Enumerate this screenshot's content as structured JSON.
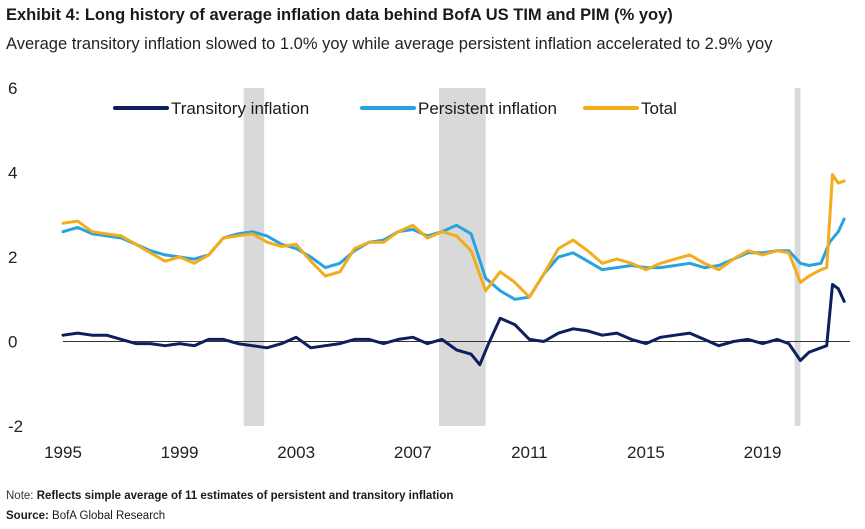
{
  "header": {
    "title": "Exhibit 4: Long history of average inflation data behind BofA US TIM and PIM (% yoy)",
    "subtitle": "Average transitory inflation slowed to 1.0% yoy while average persistent inflation accelerated to 2.9% yoy"
  },
  "footer": {
    "note_label": "Note:",
    "note_text": "Reflects simple average of 11 estimates of persistent and transitory inflation",
    "source_label": "Source:",
    "source_text": "BofA Global Research"
  },
  "colors": {
    "transitory": "#0d1f5c",
    "persistent": "#29a3e0",
    "total": "#f2ac1c",
    "recession": "#d9d9d9",
    "zero_line": "#333333"
  },
  "chart_data": {
    "type": "line",
    "title": "Exhibit 4: Long history of average inflation data behind BofA US TIM and PIM (% yoy)",
    "xlim": [
      1995,
      2022.0
    ],
    "ylim": [
      -2,
      6
    ],
    "xticks": [
      1995,
      1999,
      2003,
      2007,
      2011,
      2015,
      2019
    ],
    "yticks": [
      -2,
      0,
      2,
      4,
      6
    ],
    "legend_position": "top",
    "grid": false,
    "recession_shading": [
      [
        2001.2,
        2001.9
      ],
      [
        2007.9,
        2009.5
      ],
      [
        2020.1,
        2020.3
      ]
    ],
    "series": [
      {
        "name": "Transitory inflation",
        "color": "#0d1f5c",
        "points": [
          [
            1995.0,
            0.15
          ],
          [
            1995.5,
            0.2
          ],
          [
            1996.0,
            0.15
          ],
          [
            1996.5,
            0.15
          ],
          [
            1997.0,
            0.05
          ],
          [
            1997.5,
            -0.05
          ],
          [
            1998.0,
            -0.05
          ],
          [
            1998.5,
            -0.1
          ],
          [
            1999.0,
            -0.05
          ],
          [
            1999.5,
            -0.1
          ],
          [
            2000.0,
            0.05
          ],
          [
            2000.5,
            0.05
          ],
          [
            2001.0,
            -0.05
          ],
          [
            2001.5,
            -0.1
          ],
          [
            2002.0,
            -0.15
          ],
          [
            2002.5,
            -0.05
          ],
          [
            2003.0,
            0.1
          ],
          [
            2003.5,
            -0.15
          ],
          [
            2004.0,
            -0.1
          ],
          [
            2004.5,
            -0.05
          ],
          [
            2005.0,
            0.05
          ],
          [
            2005.5,
            0.05
          ],
          [
            2006.0,
            -0.05
          ],
          [
            2006.5,
            0.05
          ],
          [
            2007.0,
            0.1
          ],
          [
            2007.5,
            -0.05
          ],
          [
            2008.0,
            0.05
          ],
          [
            2008.5,
            -0.2
          ],
          [
            2009.0,
            -0.3
          ],
          [
            2009.3,
            -0.55
          ],
          [
            2009.6,
            -0.05
          ],
          [
            2010.0,
            0.55
          ],
          [
            2010.5,
            0.4
          ],
          [
            2011.0,
            0.05
          ],
          [
            2011.5,
            0.0
          ],
          [
            2012.0,
            0.2
          ],
          [
            2012.5,
            0.3
          ],
          [
            2013.0,
            0.25
          ],
          [
            2013.5,
            0.15
          ],
          [
            2014.0,
            0.2
          ],
          [
            2014.5,
            0.05
          ],
          [
            2015.0,
            -0.05
          ],
          [
            2015.5,
            0.1
          ],
          [
            2016.0,
            0.15
          ],
          [
            2016.5,
            0.2
          ],
          [
            2017.0,
            0.05
          ],
          [
            2017.5,
            -0.1
          ],
          [
            2018.0,
            0.0
          ],
          [
            2018.5,
            0.05
          ],
          [
            2019.0,
            -0.05
          ],
          [
            2019.5,
            0.05
          ],
          [
            2019.9,
            -0.05
          ],
          [
            2020.3,
            -0.45
          ],
          [
            2020.6,
            -0.25
          ],
          [
            2021.0,
            -0.15
          ],
          [
            2021.2,
            -0.1
          ],
          [
            2021.4,
            1.35
          ],
          [
            2021.6,
            1.25
          ],
          [
            2021.8,
            0.95
          ]
        ]
      },
      {
        "name": "Persistent inflation",
        "color": "#29a3e0",
        "points": [
          [
            1995.0,
            2.6
          ],
          [
            1995.5,
            2.7
          ],
          [
            1996.0,
            2.55
          ],
          [
            1996.5,
            2.5
          ],
          [
            1997.0,
            2.45
          ],
          [
            1997.5,
            2.3
          ],
          [
            1998.0,
            2.15
          ],
          [
            1998.5,
            2.05
          ],
          [
            1999.0,
            2.0
          ],
          [
            1999.5,
            1.95
          ],
          [
            2000.0,
            2.05
          ],
          [
            2000.5,
            2.45
          ],
          [
            2001.0,
            2.55
          ],
          [
            2001.5,
            2.6
          ],
          [
            2002.0,
            2.5
          ],
          [
            2002.5,
            2.3
          ],
          [
            2003.0,
            2.2
          ],
          [
            2003.5,
            2.0
          ],
          [
            2004.0,
            1.75
          ],
          [
            2004.5,
            1.85
          ],
          [
            2005.0,
            2.15
          ],
          [
            2005.5,
            2.35
          ],
          [
            2006.0,
            2.4
          ],
          [
            2006.5,
            2.6
          ],
          [
            2007.0,
            2.65
          ],
          [
            2007.5,
            2.5
          ],
          [
            2008.0,
            2.6
          ],
          [
            2008.5,
            2.75
          ],
          [
            2009.0,
            2.55
          ],
          [
            2009.5,
            1.5
          ],
          [
            2010.0,
            1.2
          ],
          [
            2010.5,
            1.0
          ],
          [
            2011.0,
            1.05
          ],
          [
            2011.5,
            1.6
          ],
          [
            2012.0,
            2.0
          ],
          [
            2012.5,
            2.1
          ],
          [
            2013.0,
            1.9
          ],
          [
            2013.5,
            1.7
          ],
          [
            2014.0,
            1.75
          ],
          [
            2014.5,
            1.8
          ],
          [
            2015.0,
            1.75
          ],
          [
            2015.5,
            1.75
          ],
          [
            2016.0,
            1.8
          ],
          [
            2016.5,
            1.85
          ],
          [
            2017.0,
            1.75
          ],
          [
            2017.5,
            1.8
          ],
          [
            2018.0,
            1.95
          ],
          [
            2018.5,
            2.1
          ],
          [
            2019.0,
            2.1
          ],
          [
            2019.5,
            2.15
          ],
          [
            2019.9,
            2.15
          ],
          [
            2020.3,
            1.85
          ],
          [
            2020.6,
            1.8
          ],
          [
            2021.0,
            1.85
          ],
          [
            2021.3,
            2.35
          ],
          [
            2021.6,
            2.6
          ],
          [
            2021.8,
            2.9
          ]
        ]
      },
      {
        "name": "Total",
        "color": "#f2ac1c",
        "points": [
          [
            1995.0,
            2.8
          ],
          [
            1995.5,
            2.85
          ],
          [
            1996.0,
            2.6
          ],
          [
            1996.5,
            2.55
          ],
          [
            1997.0,
            2.5
          ],
          [
            1997.5,
            2.3
          ],
          [
            1998.0,
            2.1
          ],
          [
            1998.5,
            1.9
          ],
          [
            1999.0,
            2.0
          ],
          [
            1999.5,
            1.85
          ],
          [
            2000.0,
            2.05
          ],
          [
            2000.5,
            2.45
          ],
          [
            2001.0,
            2.5
          ],
          [
            2001.5,
            2.55
          ],
          [
            2002.0,
            2.35
          ],
          [
            2002.5,
            2.25
          ],
          [
            2003.0,
            2.3
          ],
          [
            2003.5,
            1.9
          ],
          [
            2004.0,
            1.55
          ],
          [
            2004.5,
            1.65
          ],
          [
            2005.0,
            2.2
          ],
          [
            2005.5,
            2.35
          ],
          [
            2006.0,
            2.35
          ],
          [
            2006.5,
            2.6
          ],
          [
            2007.0,
            2.75
          ],
          [
            2007.5,
            2.45
          ],
          [
            2008.0,
            2.6
          ],
          [
            2008.5,
            2.5
          ],
          [
            2009.0,
            2.15
          ],
          [
            2009.5,
            1.2
          ],
          [
            2010.0,
            1.65
          ],
          [
            2010.5,
            1.4
          ],
          [
            2011.0,
            1.05
          ],
          [
            2011.5,
            1.6
          ],
          [
            2012.0,
            2.2
          ],
          [
            2012.5,
            2.4
          ],
          [
            2013.0,
            2.15
          ],
          [
            2013.5,
            1.85
          ],
          [
            2014.0,
            1.95
          ],
          [
            2014.5,
            1.85
          ],
          [
            2015.0,
            1.7
          ],
          [
            2015.5,
            1.85
          ],
          [
            2016.0,
            1.95
          ],
          [
            2016.5,
            2.05
          ],
          [
            2017.0,
            1.85
          ],
          [
            2017.5,
            1.7
          ],
          [
            2018.0,
            1.95
          ],
          [
            2018.5,
            2.15
          ],
          [
            2019.0,
            2.05
          ],
          [
            2019.5,
            2.15
          ],
          [
            2019.9,
            2.1
          ],
          [
            2020.3,
            1.4
          ],
          [
            2020.6,
            1.55
          ],
          [
            2021.0,
            1.7
          ],
          [
            2021.2,
            1.75
          ],
          [
            2021.4,
            3.95
          ],
          [
            2021.6,
            3.75
          ],
          [
            2021.8,
            3.8
          ]
        ]
      }
    ]
  }
}
